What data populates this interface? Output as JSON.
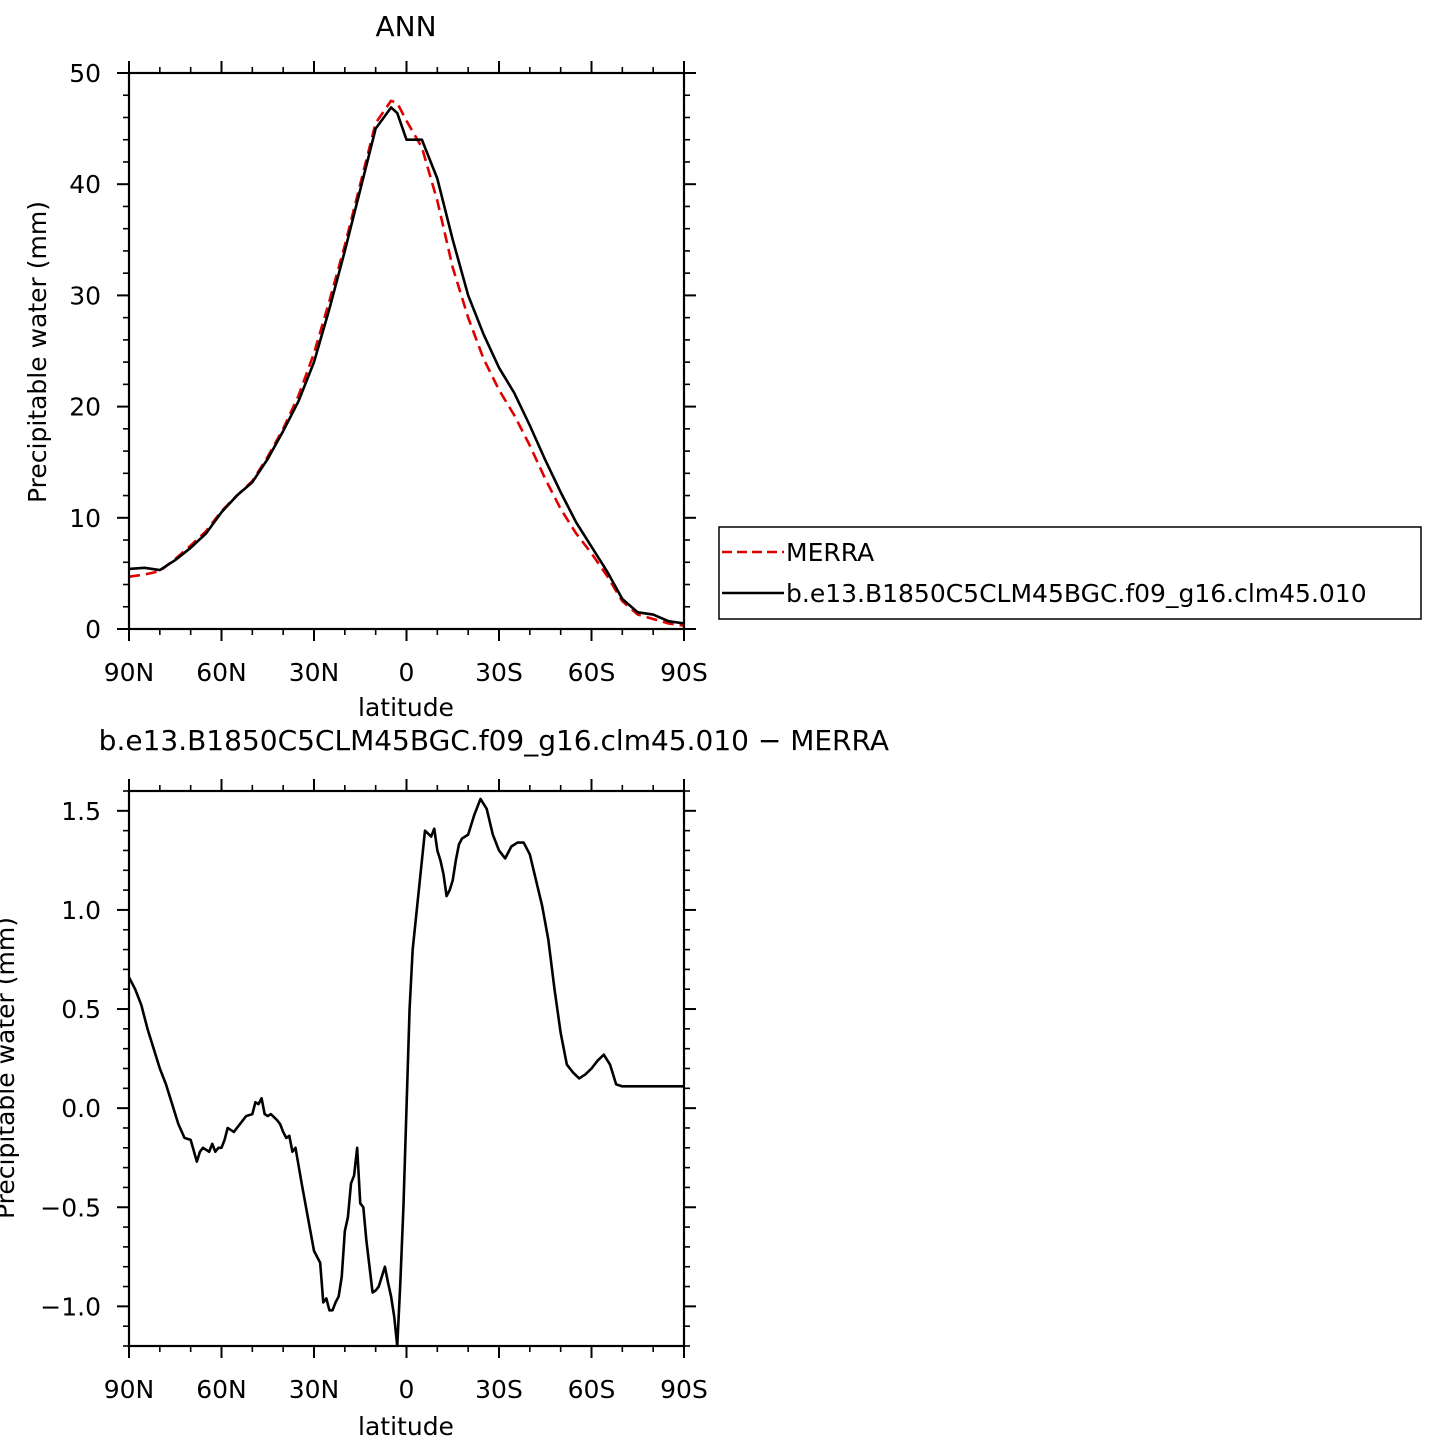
{
  "chart_data": [
    {
      "type": "line",
      "title": "ANN",
      "xlabel": "latitude",
      "ylabel": "Precipitable water (mm)",
      "xlim": [
        90,
        -90
      ],
      "ylim": [
        0,
        50
      ],
      "x_ticks": [
        90,
        60,
        30,
        0,
        -30,
        -60,
        -90
      ],
      "x_tick_labels": [
        "90N",
        "60N",
        "30N",
        "0",
        "30S",
        "60S",
        "90S"
      ],
      "y_ticks": [
        0,
        10,
        20,
        30,
        40,
        50
      ],
      "y_tick_labels": [
        "0",
        "10",
        "20",
        "30",
        "40",
        "50"
      ],
      "legend_position": "right",
      "grid": false,
      "series": [
        {
          "name": "MERRA",
          "color": "#e00000",
          "dash": true,
          "x": [
            90,
            85,
            80,
            75,
            70,
            65,
            60,
            55,
            50,
            45,
            40,
            35,
            30,
            25,
            20,
            15,
            10,
            5,
            3,
            0,
            -5,
            -10,
            -15,
            -20,
            -25,
            -30,
            -35,
            -40,
            -45,
            -50,
            -55,
            -60,
            -65,
            -70,
            -75,
            -80,
            -85,
            -90
          ],
          "y": [
            4.7,
            4.9,
            5.2,
            6.3,
            7.5,
            8.8,
            10.6,
            12.0,
            13.3,
            15.5,
            18.0,
            21.0,
            24.8,
            29.5,
            34.5,
            40.0,
            45.5,
            47.5,
            47.3,
            45.7,
            43.3,
            38.5,
            32.5,
            28.0,
            24.3,
            21.5,
            19.2,
            16.5,
            13.5,
            10.8,
            8.6,
            6.8,
            4.8,
            2.5,
            1.3,
            0.9,
            0.5,
            0.3
          ]
        },
        {
          "name": "b.e13.B1850C5CLM45BGC.f09_g16.clm45.010",
          "color": "#000000",
          "dash": false,
          "x": [
            90,
            85,
            80,
            75,
            70,
            65,
            60,
            55,
            50,
            45,
            40,
            35,
            30,
            25,
            20,
            15,
            10,
            5,
            3,
            0,
            -5,
            -10,
            -15,
            -20,
            -25,
            -30,
            -35,
            -40,
            -45,
            -50,
            -55,
            -60,
            -65,
            -70,
            -75,
            -80,
            -85,
            -90
          ],
          "y": [
            5.4,
            5.5,
            5.3,
            6.2,
            7.3,
            8.6,
            10.5,
            12.0,
            13.2,
            15.3,
            17.8,
            20.5,
            24.0,
            28.8,
            34.0,
            39.5,
            45.0,
            46.9,
            46.4,
            44.0,
            44.0,
            40.5,
            35.0,
            30.0,
            26.5,
            23.5,
            21.2,
            18.3,
            15.2,
            12.3,
            9.6,
            7.4,
            5.2,
            2.7,
            1.5,
            1.3,
            0.7,
            0.5
          ]
        }
      ]
    },
    {
      "type": "line",
      "title": "b.e13.B1850C5CLM45BGC.f09_g16.clm45.010 − MERRA",
      "xlabel": "latitude",
      "ylabel": "Precipitable water (mm)",
      "xlim": [
        90,
        -90
      ],
      "ylim": [
        -1.2,
        1.6
      ],
      "x_ticks": [
        90,
        60,
        30,
        0,
        -30,
        -60,
        -90
      ],
      "x_tick_labels": [
        "90N",
        "60N",
        "30N",
        "0",
        "30S",
        "60S",
        "90S"
      ],
      "y_ticks": [
        -1.0,
        -0.5,
        0.0,
        0.5,
        1.0,
        1.5
      ],
      "y_tick_labels": [
        "−1.0",
        "−0.5",
        "0.0",
        "0.5",
        "1.0",
        "1.5"
      ],
      "grid": false,
      "series": [
        {
          "color": "#000000",
          "dash": false,
          "x": [
            90,
            88,
            86,
            84,
            82,
            80,
            78,
            76,
            74,
            72,
            70,
            68,
            67,
            66,
            64,
            63,
            62,
            61,
            60,
            59,
            58,
            56,
            54,
            52,
            50,
            49,
            48,
            47,
            46,
            45,
            44,
            42,
            41,
            40,
            39,
            38,
            37,
            36,
            34,
            32,
            30,
            28,
            27,
            26,
            25,
            24,
            23,
            22,
            21,
            20,
            19,
            18,
            17,
            16,
            15,
            14,
            13,
            12,
            11,
            10,
            9,
            8,
            7,
            6,
            5,
            4,
            3,
            2,
            1,
            0,
            -1,
            -2,
            -4,
            -6,
            -8,
            -9,
            -10,
            -11,
            -12,
            -13,
            -14,
            -15,
            -16,
            -17,
            -18,
            -20,
            -22,
            -24,
            -26,
            -28,
            -30,
            -32,
            -34,
            -36,
            -38,
            -40,
            -42,
            -44,
            -46,
            -48,
            -50,
            -52,
            -54,
            -56,
            -58,
            -60,
            -62,
            -64,
            -66,
            -68,
            -70,
            -72,
            -74,
            -76,
            -78,
            -80,
            -82,
            -84,
            -86,
            -88,
            -90
          ],
          "y": [
            0.66,
            0.6,
            0.52,
            0.4,
            0.3,
            0.2,
            0.12,
            0.02,
            -0.08,
            -0.15,
            -0.16,
            -0.27,
            -0.22,
            -0.2,
            -0.22,
            -0.18,
            -0.22,
            -0.2,
            -0.2,
            -0.16,
            -0.1,
            -0.12,
            -0.08,
            -0.04,
            -0.03,
            0.03,
            0.02,
            0.05,
            -0.03,
            -0.04,
            -0.03,
            -0.06,
            -0.08,
            -0.12,
            -0.15,
            -0.14,
            -0.22,
            -0.2,
            -0.38,
            -0.55,
            -0.72,
            -0.78,
            -0.98,
            -0.96,
            -1.02,
            -1.02,
            -0.98,
            -0.95,
            -0.85,
            -0.62,
            -0.55,
            -0.38,
            -0.34,
            -0.2,
            -0.48,
            -0.5,
            -0.67,
            -0.8,
            -0.93,
            -0.92,
            -0.9,
            -0.85,
            -0.8,
            -0.88,
            -0.95,
            -1.05,
            -1.2,
            -0.88,
            -0.5,
            0.0,
            0.5,
            0.8,
            1.1,
            1.4,
            1.37,
            1.41,
            1.3,
            1.25,
            1.18,
            1.07,
            1.1,
            1.15,
            1.25,
            1.33,
            1.36,
            1.38,
            1.48,
            1.56,
            1.51,
            1.38,
            1.3,
            1.26,
            1.32,
            1.34,
            1.34,
            1.28,
            1.15,
            1.02,
            0.85,
            0.6,
            0.38,
            0.22,
            0.18,
            0.15,
            0.17,
            0.2,
            0.24,
            0.27,
            0.22,
            0.12,
            0.11,
            0.11,
            0.11,
            0.11,
            0.11,
            0.11,
            0.11,
            0.11,
            0.11,
            0.11,
            0.11
          ]
        }
      ]
    }
  ]
}
